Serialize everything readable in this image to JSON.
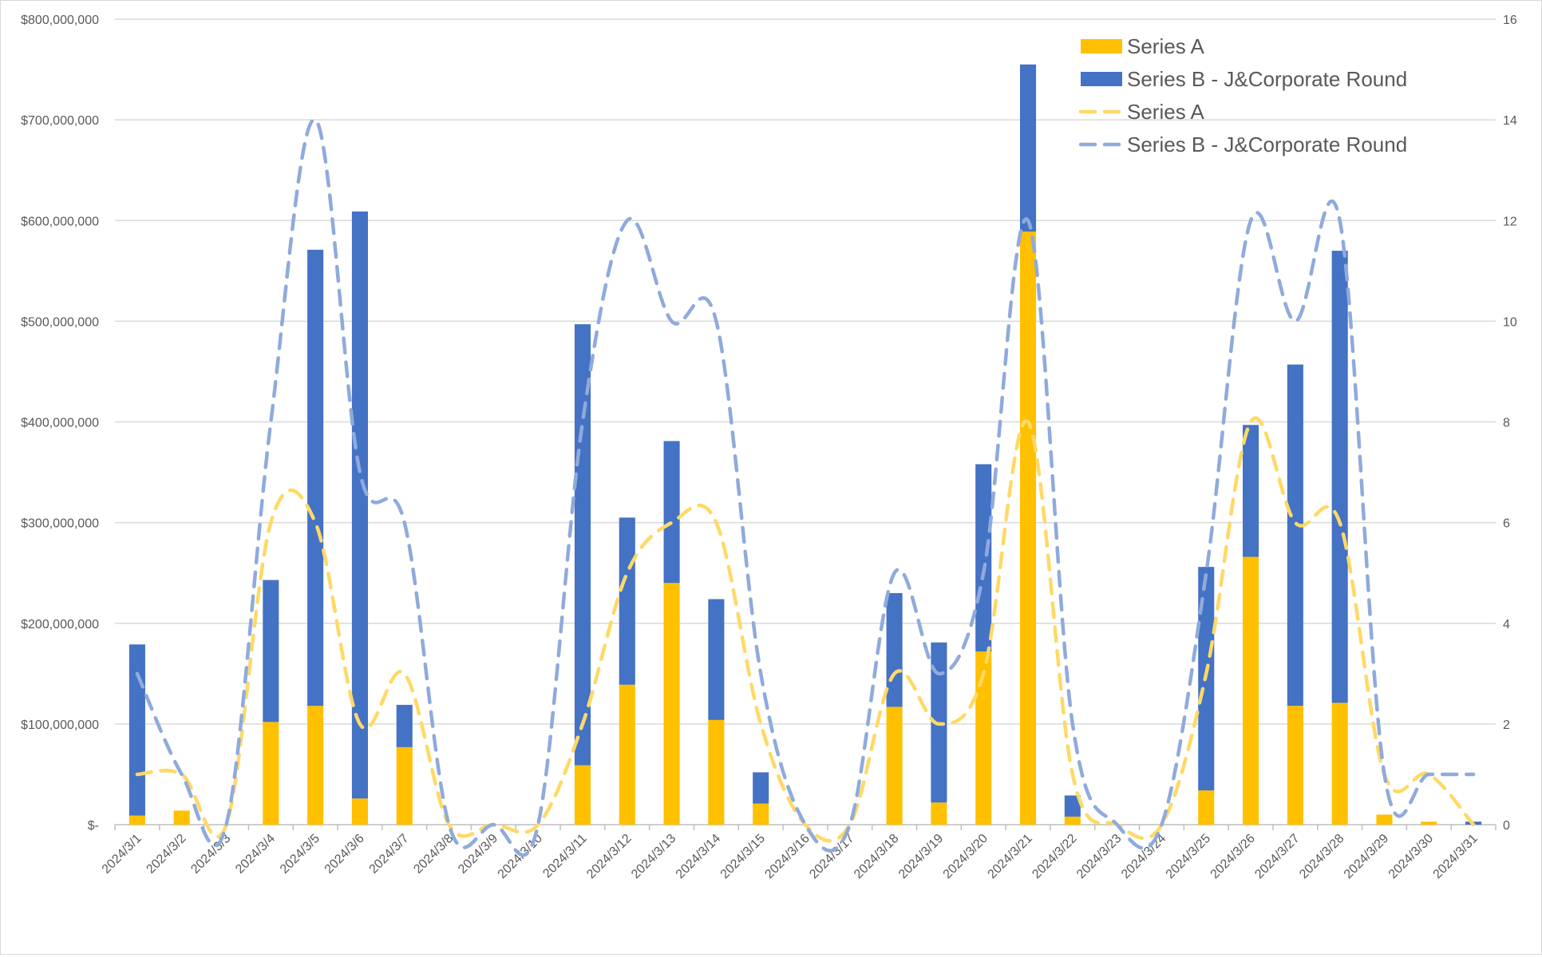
{
  "chart_data": {
    "type": "bar",
    "subtype": "stacked bar + line (secondary axis)",
    "title": "",
    "categories": [
      "2024/3/1",
      "2024/3/2",
      "2024/3/3",
      "2024/3/4",
      "2024/3/5",
      "2024/3/6",
      "2024/3/7",
      "2024/3/8",
      "2024/3/9",
      "2024/3/10",
      "2024/3/11",
      "2024/3/12",
      "2024/3/13",
      "2024/3/14",
      "2024/3/15",
      "2024/3/16",
      "2024/3/17",
      "2024/3/18",
      "2024/3/19",
      "2024/3/20",
      "2024/3/21",
      "2024/3/22",
      "2024/3/23",
      "2024/3/24",
      "2024/3/25",
      "2024/3/26",
      "2024/3/27",
      "2024/3/28",
      "2024/3/29",
      "2024/3/30",
      "2024/3/31"
    ],
    "y_left": {
      "ylim": [
        0,
        800000000
      ],
      "ticks": [
        0,
        100000000,
        200000000,
        300000000,
        400000000,
        500000000,
        600000000,
        700000000,
        800000000
      ],
      "tick_labels": [
        "$-",
        "$100,000,000",
        "$200,000,000",
        "$300,000,000",
        "$400,000,000",
        "$500,000,000",
        "$600,000,000",
        "$700,000,000",
        "$800,000,000"
      ]
    },
    "y_right": {
      "ylim": [
        0,
        16
      ],
      "ticks": [
        0,
        2,
        4,
        6,
        8,
        10,
        12,
        14,
        16
      ],
      "tick_labels": [
        "0",
        "2",
        "4",
        "6",
        "8",
        "10",
        "12",
        "14",
        "16"
      ]
    },
    "grid": true,
    "legend_position": "top-right",
    "bar_series": [
      {
        "name": "Series A",
        "color": "#FFC000",
        "values": [
          9000000,
          14000000,
          0,
          102000000,
          118000000,
          26000000,
          77000000,
          0,
          0,
          0,
          59000000,
          139000000,
          240000000,
          104000000,
          21000000,
          0,
          0,
          117000000,
          22000000,
          172000000,
          589000000,
          8000000,
          0,
          0,
          34000000,
          266000000,
          118000000,
          121000000,
          10000000,
          3000000,
          0
        ]
      },
      {
        "name": "Series B - J&Corporate Round",
        "color": "#4472C4",
        "values": [
          170000000,
          0,
          0,
          141000000,
          453000000,
          583000000,
          42000000,
          0,
          0,
          0,
          438000000,
          166000000,
          141000000,
          120000000,
          31000000,
          0,
          0,
          113000000,
          159000000,
          186000000,
          166000000,
          21000000,
          0,
          0,
          222000000,
          131000000,
          339000000,
          449000000,
          0,
          0,
          3000000
        ]
      }
    ],
    "line_series": [
      {
        "name": "Series A",
        "color": "#FFD966",
        "axis": "right",
        "values": [
          1,
          1,
          0,
          6,
          6,
          2,
          3,
          0,
          0,
          0,
          2,
          5,
          6,
          6,
          2,
          0,
          0,
          3,
          2,
          3,
          8,
          1,
          0,
          0,
          3,
          8,
          6,
          6,
          1,
          1,
          0
        ]
      },
      {
        "name": "Series B - J&Corporate Round",
        "color": "#8FAADC",
        "axis": "right",
        "values": [
          3,
          1,
          0,
          8,
          14,
          7,
          6,
          0,
          0,
          0,
          8,
          12,
          10,
          10,
          3,
          0,
          0,
          5,
          3,
          5,
          12,
          2,
          0,
          0,
          5,
          12,
          10,
          12,
          1,
          1,
          1
        ]
      }
    ]
  }
}
